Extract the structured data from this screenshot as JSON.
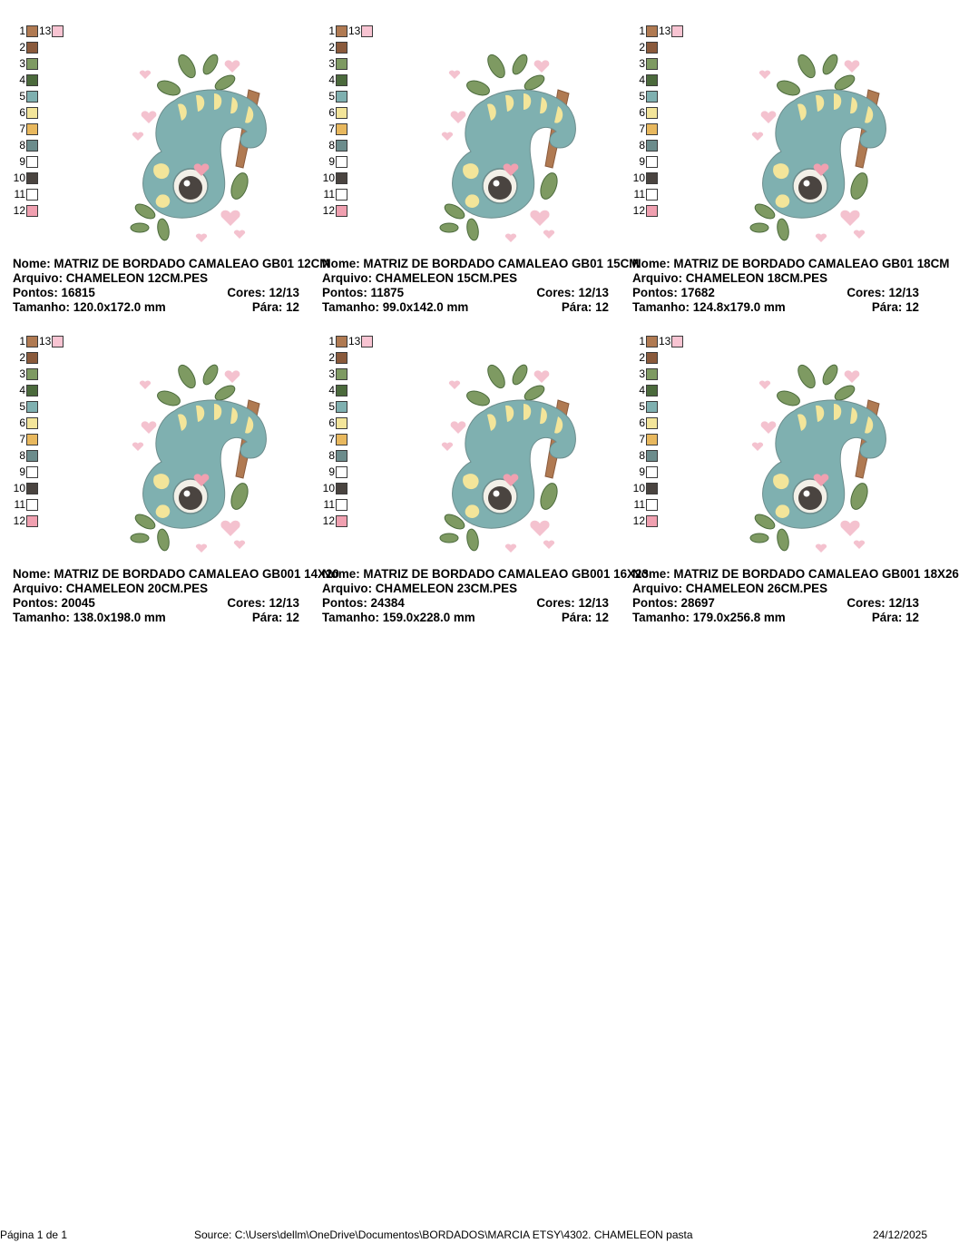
{
  "thread_colors": [
    {
      "num": "1",
      "color": "#b07a52"
    },
    {
      "num": "2",
      "color": "#8a5a3c"
    },
    {
      "num": "3",
      "color": "#7e9a62"
    },
    {
      "num": "4",
      "color": "#4b6a3c"
    },
    {
      "num": "5",
      "color": "#7fb0b0"
    },
    {
      "num": "6",
      "color": "#f3e59a"
    },
    {
      "num": "7",
      "color": "#e8b85e"
    },
    {
      "num": "8",
      "color": "#6c8c8c"
    },
    {
      "num": "9",
      "color": "#ffffff"
    },
    {
      "num": "10",
      "color": "#4a4440"
    },
    {
      "num": "11",
      "color": "#ffffff"
    },
    {
      "num": "12",
      "color": "#f0a0b0"
    },
    {
      "num": "13",
      "color": "#f8c4d2"
    }
  ],
  "designs": [
    {
      "nome_line": "Nome: MATRIZ DE BORDADO CAMALEAO GB01 12CM",
      "arquivo_line": "Arquivo: CHAMELEON 12CM.PES",
      "pontos_line": "Pontos: 16815",
      "cores_line": "Cores: 12/13",
      "tamanho_line": "Tamanho: 120.0x172.0 mm",
      "para_line": "Pára: 12"
    },
    {
      "nome_line": "Nome: MATRIZ DE BORDADO CAMALEAO GB01 15CM",
      "arquivo_line": "Arquivo: CHAMELEON 15CM.PES",
      "pontos_line": "Pontos: 11875",
      "cores_line": "Cores: 12/13",
      "tamanho_line": "Tamanho: 99.0x142.0 mm",
      "para_line": "Pára: 12"
    },
    {
      "nome_line": "Nome: MATRIZ DE BORDADO CAMALEAO GB01 18CM",
      "arquivo_line": "Arquivo: CHAMELEON 18CM.PES",
      "pontos_line": "Pontos: 17682",
      "cores_line": "Cores: 12/13",
      "tamanho_line": "Tamanho: 124.8x179.0 mm",
      "para_line": "Pára: 12"
    },
    {
      "nome_line": "Nome: MATRIZ DE BORDADO CAMALEAO GB001 14X20",
      "arquivo_line": "Arquivo: CHAMELEON 20CM.PES",
      "pontos_line": "Pontos: 20045",
      "cores_line": "Cores: 12/13",
      "tamanho_line": "Tamanho: 138.0x198.0 mm",
      "para_line": "Pára: 12"
    },
    {
      "nome_line": "Nome: MATRIZ DE BORDADO CAMALEAO GB001 16X23",
      "arquivo_line": "Arquivo: CHAMELEON 23CM.PES",
      "pontos_line": "Pontos: 24384",
      "cores_line": "Cores: 12/13",
      "tamanho_line": "Tamanho: 159.0x228.0 mm",
      "para_line": "Pára: 12"
    },
    {
      "nome_line": "Nome: MATRIZ DE BORDADO CAMALEAO GB001 18X26",
      "arquivo_line": "Arquivo: CHAMELEON 26CM.PES",
      "pontos_line": "Pontos: 28697",
      "cores_line": "Cores: 12/13",
      "tamanho_line": "Tamanho: 179.0x256.8 mm",
      "para_line": "Pára: 12"
    }
  ],
  "footer": {
    "page": "Página 1 de 1",
    "source": "Source: C:\\Users\\dellm\\OneDrive\\Documentos\\BORDADOS\\MARCIA ETSY\\4302. CHAMELEON pasta",
    "date": "24/12/2025"
  }
}
